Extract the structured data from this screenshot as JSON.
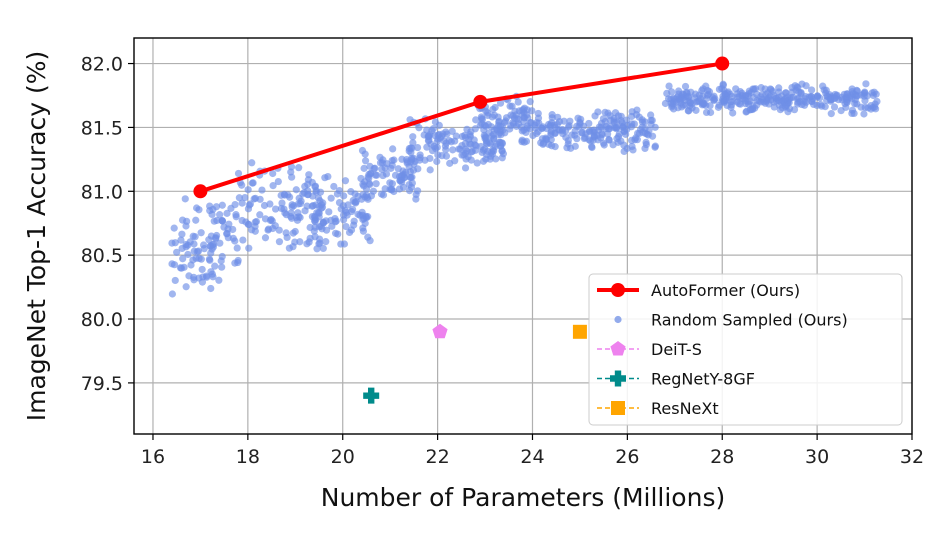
{
  "chart_data": {
    "type": "scatter",
    "title": "",
    "xlabel": "Number of Parameters (Millions)",
    "ylabel": "ImageNet Top-1 Accuracy (%)",
    "xlim": [
      15.6,
      32
    ],
    "ylim": [
      79.1,
      82.2
    ],
    "xticks": [
      "16",
      "18",
      "20",
      "22",
      "24",
      "26",
      "28",
      "30",
      "32"
    ],
    "yticks": [
      "79.5",
      "80.0",
      "80.5",
      "81.0",
      "81.5",
      "82.0"
    ],
    "grid": true,
    "legend_position": "bottom-right",
    "series": [
      {
        "name": "AutoFormer (Ours)",
        "kind": "line-marker",
        "color": "#ff0000",
        "x": [
          17.0,
          22.9,
          28.0
        ],
        "y": [
          81.0,
          81.7,
          82.0
        ]
      },
      {
        "name": "Random Sampled (Ours)",
        "kind": "scatter-cloud",
        "color": "#6f8fe6",
        "clusters": [
          {
            "x_range": [
              16.4,
              17.3
            ],
            "y_range": [
              80.05,
              80.95
            ]
          },
          {
            "x_range": [
              17.2,
              17.8
            ],
            "y_range": [
              80.3,
              80.95
            ]
          },
          {
            "x_range": [
              17.8,
              19.6
            ],
            "y_range": [
              80.5,
              81.25
            ]
          },
          {
            "x_range": [
              19.4,
              20.6
            ],
            "y_range": [
              80.55,
              81.15
            ]
          },
          {
            "x_range": [
              20.4,
              21.6
            ],
            "y_range": [
              80.9,
              81.35
            ]
          },
          {
            "x_range": [
              21.4,
              23.4
            ],
            "y_range": [
              81.15,
              81.6
            ]
          },
          {
            "x_range": [
              22.8,
              24.0
            ],
            "y_range": [
              81.35,
              81.75
            ]
          },
          {
            "x_range": [
              24.0,
              26.6
            ],
            "y_range": [
              81.3,
              81.65
            ]
          },
          {
            "x_range": [
              26.8,
              31.3
            ],
            "y_range": [
              81.6,
              81.85
            ]
          }
        ]
      },
      {
        "name": "DeiT-S",
        "kind": "pentagon",
        "color": "#ee82ee",
        "x": [
          22.05
        ],
        "y": [
          79.9
        ]
      },
      {
        "name": "RegNetY-8GF",
        "kind": "plus",
        "color": "#008b8b",
        "x": [
          20.6
        ],
        "y": [
          79.4
        ]
      },
      {
        "name": "ResNeXt",
        "kind": "square",
        "color": "#ffa500",
        "x": [
          25.0
        ],
        "y": [
          79.9
        ]
      }
    ]
  }
}
